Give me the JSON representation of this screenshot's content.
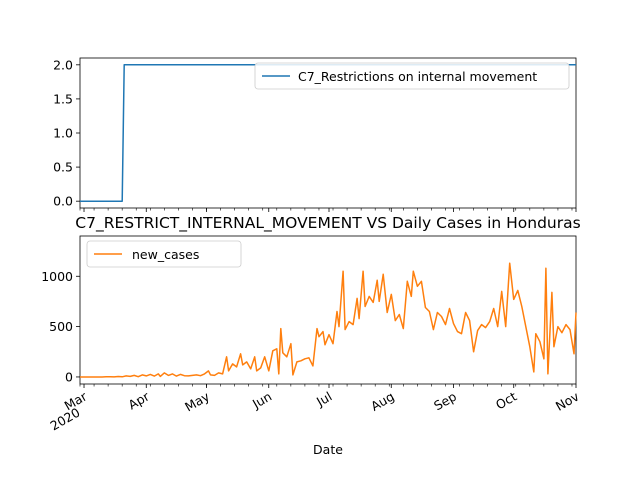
{
  "colors": {
    "series1": "#1f77b4",
    "series2": "#ff7f0e"
  },
  "chart_data": [
    {
      "type": "line",
      "title": "",
      "xlabel": "",
      "ylabel": "",
      "ylim": [
        -0.1,
        2.1
      ],
      "yticks": [
        "0.0",
        "0.5",
        "1.0",
        "1.5",
        "2.0"
      ],
      "x_range": [
        "2020-02-28",
        "2020-11-01"
      ],
      "legend": "top-right",
      "series": [
        {
          "name": "C7_Restrictions on internal movement",
          "points": [
            [
              "2020-02-28",
              0
            ],
            [
              "2020-03-20",
              0
            ],
            [
              "2020-03-21",
              2
            ],
            [
              "2020-11-01",
              2
            ]
          ]
        }
      ]
    },
    {
      "type": "line",
      "title": "C7_RESTRICT_INTERNAL_MOVEMENT VS Daily Cases in Honduras",
      "xlabel": "Date",
      "ylabel": "",
      "ylim": [
        -70,
        1400
      ],
      "yticks": [
        "0",
        "500",
        "1000"
      ],
      "x_range": [
        "2020-02-28",
        "2020-11-01"
      ],
      "xticks": [
        {
          "date": "2020-03-01",
          "label": "Mar",
          "sublabel": "2020"
        },
        {
          "date": "2020-04-01",
          "label": "Apr"
        },
        {
          "date": "2020-05-01",
          "label": "May"
        },
        {
          "date": "2020-06-01",
          "label": "Jun"
        },
        {
          "date": "2020-07-01",
          "label": "Jul"
        },
        {
          "date": "2020-08-01",
          "label": "Aug"
        },
        {
          "date": "2020-09-01",
          "label": "Sep"
        },
        {
          "date": "2020-10-01",
          "label": "Oct"
        },
        {
          "date": "2020-11-01",
          "label": "Nov"
        }
      ],
      "legend": "top-left",
      "series": [
        {
          "name": "new_cases",
          "points": [
            [
              "2020-02-28",
              0
            ],
            [
              "2020-03-10",
              0
            ],
            [
              "2020-03-12",
              2
            ],
            [
              "2020-03-14",
              3
            ],
            [
              "2020-03-16",
              1
            ],
            [
              "2020-03-18",
              4
            ],
            [
              "2020-03-20",
              2
            ],
            [
              "2020-03-22",
              10
            ],
            [
              "2020-03-24",
              5
            ],
            [
              "2020-03-26",
              15
            ],
            [
              "2020-03-28",
              3
            ],
            [
              "2020-03-30",
              20
            ],
            [
              "2020-04-01",
              10
            ],
            [
              "2020-04-03",
              25
            ],
            [
              "2020-04-05",
              8
            ],
            [
              "2020-04-07",
              30
            ],
            [
              "2020-04-08",
              5
            ],
            [
              "2020-04-10",
              40
            ],
            [
              "2020-04-12",
              15
            ],
            [
              "2020-04-14",
              30
            ],
            [
              "2020-04-16",
              8
            ],
            [
              "2020-04-18",
              25
            ],
            [
              "2020-04-20",
              12
            ],
            [
              "2020-04-22",
              10
            ],
            [
              "2020-04-24",
              15
            ],
            [
              "2020-04-26",
              20
            ],
            [
              "2020-04-28",
              12
            ],
            [
              "2020-04-30",
              30
            ],
            [
              "2020-05-02",
              60
            ],
            [
              "2020-05-03",
              20
            ],
            [
              "2020-05-05",
              15
            ],
            [
              "2020-05-07",
              40
            ],
            [
              "2020-05-09",
              30
            ],
            [
              "2020-05-11",
              200
            ],
            [
              "2020-05-12",
              60
            ],
            [
              "2020-05-14",
              130
            ],
            [
              "2020-05-16",
              100
            ],
            [
              "2020-05-18",
              230
            ],
            [
              "2020-05-19",
              120
            ],
            [
              "2020-05-21",
              150
            ],
            [
              "2020-05-23",
              80
            ],
            [
              "2020-05-25",
              200
            ],
            [
              "2020-05-26",
              60
            ],
            [
              "2020-05-28",
              90
            ],
            [
              "2020-05-30",
              200
            ],
            [
              "2020-06-01",
              60
            ],
            [
              "2020-06-03",
              260
            ],
            [
              "2020-06-05",
              280
            ],
            [
              "2020-06-06",
              30
            ],
            [
              "2020-06-07",
              480
            ],
            [
              "2020-06-08",
              240
            ],
            [
              "2020-06-10",
              200
            ],
            [
              "2020-06-12",
              330
            ],
            [
              "2020-06-13",
              20
            ],
            [
              "2020-06-15",
              150
            ],
            [
              "2020-06-17",
              160
            ],
            [
              "2020-06-19",
              180
            ],
            [
              "2020-06-21",
              190
            ],
            [
              "2020-06-23",
              110
            ],
            [
              "2020-06-25",
              480
            ],
            [
              "2020-06-26",
              400
            ],
            [
              "2020-06-28",
              450
            ],
            [
              "2020-06-29",
              320
            ],
            [
              "2020-07-01",
              420
            ],
            [
              "2020-07-03",
              330
            ],
            [
              "2020-07-05",
              650
            ],
            [
              "2020-07-06",
              500
            ],
            [
              "2020-07-08",
              1050
            ],
            [
              "2020-07-09",
              470
            ],
            [
              "2020-07-11",
              550
            ],
            [
              "2020-07-13",
              520
            ],
            [
              "2020-07-15",
              780
            ],
            [
              "2020-07-16",
              580
            ],
            [
              "2020-07-18",
              1050
            ],
            [
              "2020-07-19",
              700
            ],
            [
              "2020-07-21",
              800
            ],
            [
              "2020-07-23",
              740
            ],
            [
              "2020-07-25",
              960
            ],
            [
              "2020-07-26",
              750
            ],
            [
              "2020-07-28",
              1020
            ],
            [
              "2020-07-30",
              640
            ],
            [
              "2020-08-01",
              820
            ],
            [
              "2020-08-03",
              560
            ],
            [
              "2020-08-05",
              620
            ],
            [
              "2020-08-07",
              480
            ],
            [
              "2020-08-09",
              950
            ],
            [
              "2020-08-11",
              800
            ],
            [
              "2020-08-12",
              1050
            ],
            [
              "2020-08-14",
              900
            ],
            [
              "2020-08-16",
              950
            ],
            [
              "2020-08-18",
              690
            ],
            [
              "2020-08-20",
              650
            ],
            [
              "2020-08-22",
              470
            ],
            [
              "2020-08-24",
              640
            ],
            [
              "2020-08-26",
              600
            ],
            [
              "2020-08-28",
              520
            ],
            [
              "2020-08-30",
              680
            ],
            [
              "2020-09-01",
              530
            ],
            [
              "2020-09-03",
              450
            ],
            [
              "2020-09-05",
              430
            ],
            [
              "2020-09-07",
              640
            ],
            [
              "2020-09-09",
              560
            ],
            [
              "2020-09-11",
              250
            ],
            [
              "2020-09-13",
              460
            ],
            [
              "2020-09-15",
              520
            ],
            [
              "2020-09-17",
              490
            ],
            [
              "2020-09-19",
              550
            ],
            [
              "2020-09-21",
              680
            ],
            [
              "2020-09-23",
              500
            ],
            [
              "2020-09-25",
              850
            ],
            [
              "2020-09-27",
              500
            ],
            [
              "2020-09-29",
              1130
            ],
            [
              "2020-10-01",
              770
            ],
            [
              "2020-10-03",
              860
            ],
            [
              "2020-10-05",
              700
            ],
            [
              "2020-10-07",
              500
            ],
            [
              "2020-10-09",
              300
            ],
            [
              "2020-10-11",
              50
            ],
            [
              "2020-10-12",
              430
            ],
            [
              "2020-10-14",
              350
            ],
            [
              "2020-10-16",
              180
            ],
            [
              "2020-10-17",
              1080
            ],
            [
              "2020-10-18",
              30
            ],
            [
              "2020-10-20",
              840
            ],
            [
              "2020-10-21",
              300
            ],
            [
              "2020-10-23",
              500
            ],
            [
              "2020-10-25",
              440
            ],
            [
              "2020-10-27",
              520
            ],
            [
              "2020-10-29",
              470
            ],
            [
              "2020-10-31",
              230
            ],
            [
              "2020-11-01",
              640
            ]
          ]
        }
      ]
    }
  ]
}
